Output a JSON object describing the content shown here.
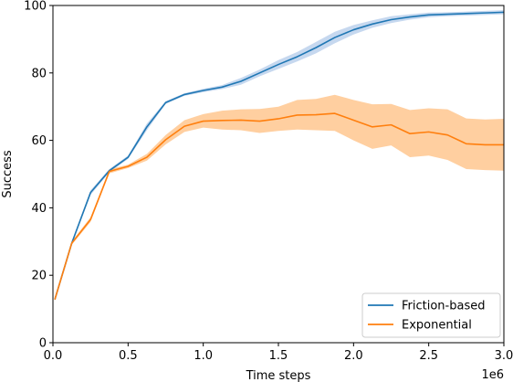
{
  "chart_data": {
    "type": "line",
    "xlabel": "Time steps",
    "ylabel": "Success",
    "x_multiplier_label": "1e6",
    "xlim": [
      0,
      3.0
    ],
    "ylim": [
      0,
      100
    ],
    "x_ticks": [
      0.0,
      0.5,
      1.0,
      1.5,
      2.0,
      2.5,
      3.0
    ],
    "x_tick_labels": [
      "0.0",
      "0.5",
      "1.0",
      "1.5",
      "2.0",
      "2.5",
      "3.0"
    ],
    "y_ticks": [
      0,
      20,
      40,
      60,
      80,
      100
    ],
    "y_tick_labels": [
      "0",
      "20",
      "40",
      "60",
      "80",
      "100"
    ],
    "grid": false,
    "legend_position": "lower-right",
    "x": [
      0.0125,
      0.125,
      0.25,
      0.375,
      0.5,
      0.625,
      0.75,
      0.875,
      1.0,
      1.125,
      1.25,
      1.375,
      1.5,
      1.625,
      1.75,
      1.875,
      2.0,
      2.125,
      2.25,
      2.375,
      2.5,
      2.625,
      2.75,
      2.875,
      3.0
    ],
    "series": [
      {
        "name": "Friction-based",
        "color": "#1f77b4",
        "band_color": "#aec7e8",
        "values": [
          12.8,
          29.5,
          44.5,
          51.0,
          55.0,
          64.0,
          71.2,
          73.6,
          74.8,
          75.8,
          77.5,
          80.0,
          82.5,
          84.8,
          87.5,
          90.5,
          92.8,
          94.5,
          95.8,
          96.6,
          97.2,
          97.4,
          97.6,
          97.8,
          98.0
        ],
        "lower": [
          12.5,
          29.0,
          43.8,
          50.5,
          54.5,
          63.0,
          70.8,
          73.2,
          74.3,
          75.2,
          76.5,
          79.0,
          81.2,
          83.4,
          85.8,
          88.8,
          91.4,
          93.4,
          94.8,
          95.8,
          96.5,
          96.8,
          97.0,
          97.2,
          97.4
        ],
        "upper": [
          13.1,
          30.0,
          45.2,
          51.5,
          55.5,
          65.0,
          71.6,
          74.0,
          75.3,
          76.4,
          78.5,
          81.0,
          83.8,
          86.2,
          89.2,
          92.2,
          94.2,
          95.6,
          96.8,
          97.4,
          97.9,
          98.0,
          98.2,
          98.4,
          98.6
        ]
      },
      {
        "name": "Exponential",
        "color": "#ff7f0e",
        "band_color": "#ffbb78",
        "values": [
          12.8,
          29.5,
          36.5,
          50.8,
          52.3,
          55.0,
          60.2,
          64.2,
          65.7,
          65.9,
          66.0,
          65.7,
          66.4,
          67.5,
          67.6,
          68.0,
          66.0,
          64.0,
          64.6,
          62.0,
          62.5,
          61.6,
          59.0,
          58.7,
          58.7
        ],
        "lower": [
          12.5,
          29.0,
          35.8,
          50.2,
          51.8,
          54.0,
          58.8,
          62.5,
          63.8,
          63.2,
          63.0,
          62.2,
          62.8,
          63.2,
          63.0,
          62.8,
          60.0,
          57.5,
          58.5,
          55.0,
          55.5,
          54.2,
          51.5,
          51.2,
          51.0
        ],
        "upper": [
          13.1,
          30.0,
          37.2,
          51.4,
          52.8,
          56.0,
          61.6,
          66.0,
          67.8,
          68.8,
          69.2,
          69.3,
          70.0,
          72.0,
          72.3,
          73.5,
          72.0,
          70.7,
          70.8,
          69.0,
          69.5,
          69.2,
          66.5,
          66.2,
          66.4
        ]
      }
    ]
  }
}
